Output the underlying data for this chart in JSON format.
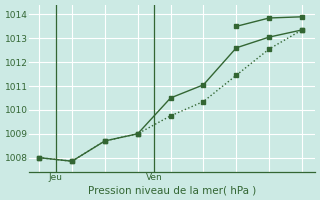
{
  "line1_x": [
    0,
    1,
    2,
    3,
    4,
    5,
    6,
    7,
    8
  ],
  "line1_y": [
    1008.0,
    1007.85,
    1008.7,
    1009.0,
    1010.5,
    1011.05,
    1012.6,
    1013.05,
    1013.35
  ],
  "line2_x": [
    0,
    1,
    2,
    3,
    4,
    5,
    6,
    7,
    8
  ],
  "line2_y": [
    1008.0,
    1007.85,
    1008.7,
    1009.0,
    1009.75,
    1010.35,
    1011.45,
    1012.55,
    1013.35
  ],
  "line3_x": [
    6,
    7,
    8
  ],
  "line3_y": [
    1013.5,
    1013.85,
    1013.9
  ],
  "line_color": "#336633",
  "bg_color": "#cceae4",
  "grid_color": "#ffffff",
  "ylabel_ticks": [
    1008,
    1009,
    1010,
    1011,
    1012,
    1013,
    1014
  ],
  "ylim": [
    1007.4,
    1014.4
  ],
  "xlim": [
    -0.3,
    8.4
  ],
  "xlabel": "Pression niveau de la mer( hPa )",
  "xtick_positions": [
    0.5,
    3.5
  ],
  "xtick_labels": [
    "Jeu",
    "Ven"
  ],
  "vline_x": [
    0.5,
    3.5
  ],
  "grid_x": [
    0,
    1,
    2,
    3,
    4,
    5,
    6,
    7,
    8
  ],
  "marker_size": 3,
  "line_width": 1.0,
  "tick_fontsize": 6.5,
  "xlabel_fontsize": 7.5
}
